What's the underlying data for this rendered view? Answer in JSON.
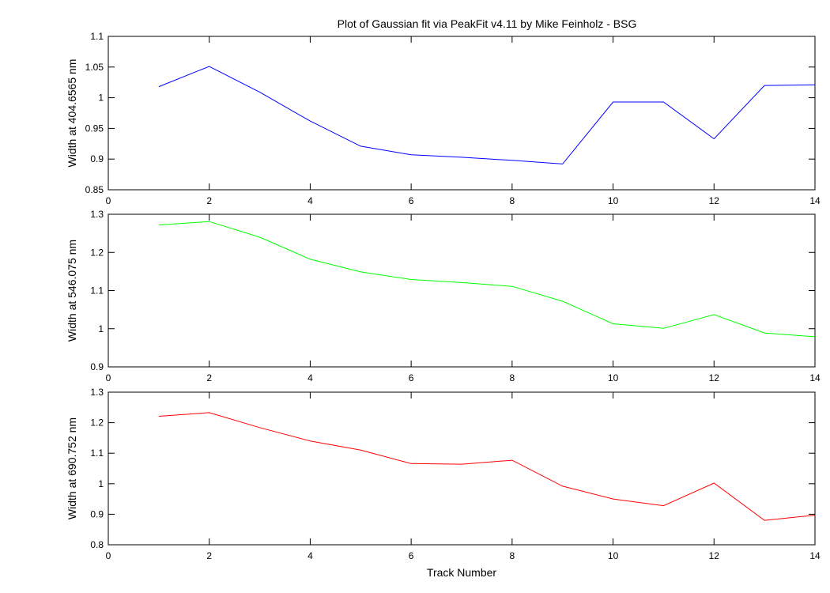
{
  "figure_title": "Plot of Gaussian fit via PeakFit v4.11 by Mike Feinholz - BSG",
  "chart_data": [
    {
      "type": "line",
      "title": "Plot of Gaussian fit via PeakFit v4.11 by Mike Feinholz - BSG",
      "xlabel": "",
      "ylabel": "Width at 404.6565 nm",
      "xlim": [
        0,
        14
      ],
      "ylim": [
        0.85,
        1.1
      ],
      "xticks": [
        0,
        2,
        4,
        6,
        8,
        10,
        12,
        14
      ],
      "yticks": [
        0.85,
        0.9,
        0.95,
        1,
        1.05,
        1.1
      ],
      "yticklabels": [
        "0.85",
        "0.9",
        "0.95",
        "1",
        "1.05",
        "1.1"
      ],
      "grid": false,
      "color": "#0000ff",
      "x": [
        1,
        2,
        3,
        4,
        5,
        6,
        7,
        8,
        9,
        10,
        11,
        12,
        13,
        14
      ],
      "y": [
        1.018,
        1.051,
        1.009,
        0.962,
        0.921,
        0.907,
        0.903,
        0.898,
        0.892,
        0.993,
        0.993,
        0.933,
        1.02,
        1.021
      ]
    },
    {
      "type": "line",
      "title": "",
      "xlabel": "",
      "ylabel": "Width at 546.075 nm",
      "xlim": [
        0,
        14
      ],
      "ylim": [
        0.9,
        1.3
      ],
      "xticks": [
        0,
        2,
        4,
        6,
        8,
        10,
        12,
        14
      ],
      "yticks": [
        0.9,
        1,
        1.1,
        1.2,
        1.3
      ],
      "yticklabels": [
        "0.9",
        "1",
        "1.1",
        "1.2",
        "1.3"
      ],
      "grid": false,
      "color": "#00ff00",
      "x": [
        1,
        2,
        3,
        4,
        5,
        6,
        7,
        8,
        9,
        10,
        11,
        12,
        13,
        14
      ],
      "y": [
        1.272,
        1.281,
        1.24,
        1.182,
        1.149,
        1.129,
        1.121,
        1.111,
        1.072,
        1.013,
        1.001,
        1.037,
        0.989,
        0.979
      ]
    },
    {
      "type": "line",
      "title": "",
      "xlabel": "Track Number",
      "ylabel": "Width at 690.752 nm",
      "xlim": [
        0,
        14
      ],
      "ylim": [
        0.8,
        1.3
      ],
      "xticks": [
        0,
        2,
        4,
        6,
        8,
        10,
        12,
        14
      ],
      "yticks": [
        0.8,
        0.9,
        1,
        1.1,
        1.2,
        1.3
      ],
      "yticklabels": [
        "0.8",
        "0.9",
        "1",
        "1.1",
        "1.2",
        "1.3"
      ],
      "grid": false,
      "color": "#ff0000",
      "x": [
        1,
        2,
        3,
        4,
        5,
        6,
        7,
        8,
        9,
        10,
        11,
        12,
        13,
        14
      ],
      "y": [
        1.221,
        1.233,
        1.184,
        1.14,
        1.11,
        1.066,
        1.064,
        1.077,
        0.992,
        0.95,
        0.928,
        1.002,
        0.88,
        0.897
      ]
    }
  ]
}
